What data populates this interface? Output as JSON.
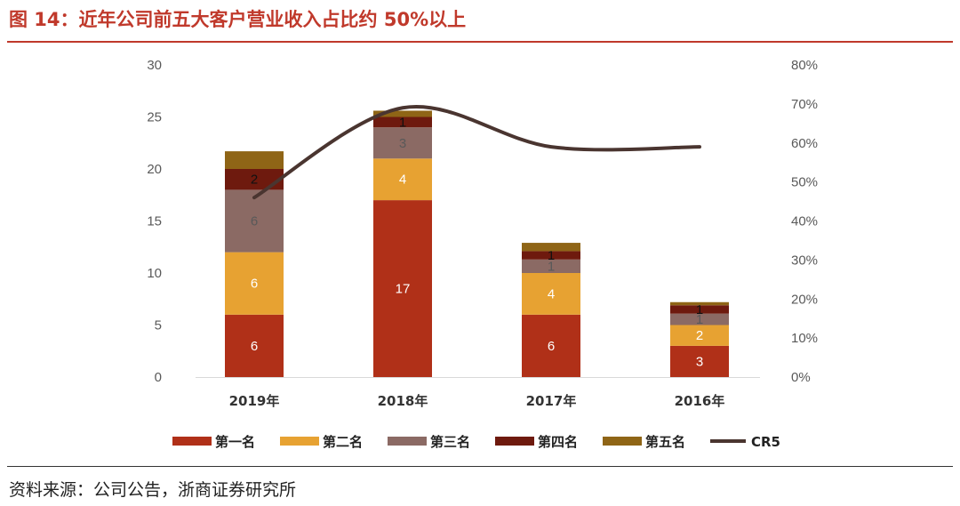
{
  "header": {
    "title": "图 14：近年公司前五大客户营业收入占比约 50%以上"
  },
  "footer": {
    "source": "资料来源：公司公告，浙商证券研究所"
  },
  "chart_data": {
    "type": "bar",
    "stacked": true,
    "categories": [
      "2019年",
      "2018年",
      "2017年",
      "2016年"
    ],
    "series": [
      {
        "name": "第一名",
        "values": [
          6,
          17,
          6,
          3
        ],
        "color": "#B03018",
        "labels": [
          "6",
          "17",
          "6",
          "3"
        ],
        "label_color": "#ffffff"
      },
      {
        "name": "第二名",
        "values": [
          6,
          4,
          4,
          2
        ],
        "color": "#E7A232",
        "labels": [
          "6",
          "4",
          "4",
          "2"
        ],
        "label_color": "#ffffff"
      },
      {
        "name": "第三名",
        "values": [
          6,
          3,
          1.3,
          1.1
        ],
        "color": "#8B6A64",
        "labels": [
          "6",
          "3",
          "1",
          "1"
        ],
        "label_color": "#595959"
      },
      {
        "name": "第四名",
        "values": [
          2,
          1,
          0.8,
          0.8
        ],
        "color": "#6E1A0E",
        "labels": [
          "2",
          "1",
          "1",
          "1"
        ],
        "label_color": "#111111"
      },
      {
        "name": "第五名",
        "values": [
          1.7,
          0.6,
          0.8,
          0.3
        ],
        "color": "#8F6516",
        "labels": [],
        "label_color": "#111111"
      }
    ],
    "line_series": {
      "name": "CR5",
      "values": [
        0.46,
        0.69,
        0.59,
        0.59
      ],
      "color": "#4A3530",
      "axis": "right"
    },
    "y_left": {
      "min": 0,
      "max": 30,
      "ticks": [
        "0",
        "5",
        "10",
        "15",
        "20",
        "25",
        "30"
      ]
    },
    "y_right": {
      "min": 0,
      "max": 0.8,
      "ticks": [
        "0%",
        "10%",
        "20%",
        "30%",
        "40%",
        "50%",
        "60%",
        "70%",
        "80%"
      ]
    },
    "grid": false,
    "legend": "bottom"
  }
}
